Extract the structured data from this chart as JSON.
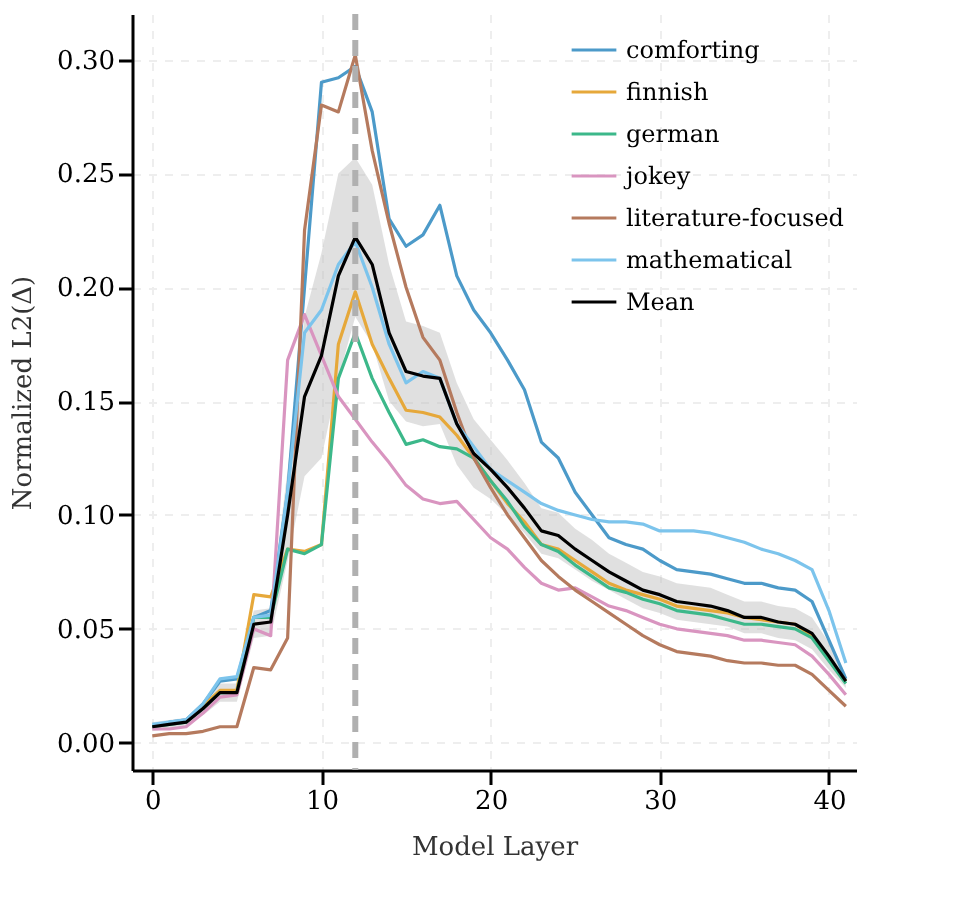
{
  "chart_data": {
    "type": "line",
    "xlabel": "Model Layer",
    "ylabel": "Normalized L2(Δ)",
    "x": [
      0,
      1,
      2,
      3,
      4,
      5,
      6,
      7,
      8,
      9,
      10,
      11,
      12,
      13,
      14,
      15,
      16,
      17,
      18,
      19,
      20,
      21,
      22,
      23,
      24,
      25,
      26,
      27,
      28,
      29,
      30,
      31,
      32,
      33,
      34,
      35,
      36,
      37,
      38,
      39,
      40,
      41
    ],
    "series": [
      {
        "name": "comforting",
        "color": "#4c9ac9",
        "values": [
          0.007,
          0.009,
          0.01,
          0.017,
          0.027,
          0.028,
          0.055,
          0.058,
          0.11,
          0.2,
          0.29,
          0.292,
          0.297,
          0.277,
          0.23,
          0.218,
          0.223,
          0.236,
          0.205,
          0.19,
          0.18,
          0.168,
          0.155,
          0.132,
          0.125,
          0.11,
          0.1,
          0.09,
          0.087,
          0.085,
          0.08,
          0.076,
          0.075,
          0.074,
          0.072,
          0.07,
          0.07,
          0.068,
          0.067,
          0.062,
          0.045,
          0.028
        ]
      },
      {
        "name": "finnish",
        "color": "#e6a83a",
        "values": [
          null,
          null,
          0.009,
          0.016,
          0.023,
          0.023,
          0.065,
          0.064,
          0.085,
          0.084,
          0.087,
          0.175,
          0.198,
          0.175,
          0.16,
          0.146,
          0.145,
          0.143,
          0.135,
          0.125,
          0.115,
          0.105,
          0.097,
          0.087,
          0.085,
          0.08,
          0.075,
          0.07,
          0.067,
          0.065,
          0.063,
          0.06,
          0.059,
          0.058,
          0.057,
          0.055,
          0.054,
          0.053,
          0.052,
          0.047,
          0.037,
          0.027
        ]
      },
      {
        "name": "german",
        "color": "#3cb88a",
        "values": [
          0.007,
          0.008,
          0.009,
          0.015,
          0.022,
          0.022,
          0.055,
          0.055,
          0.085,
          0.083,
          0.087,
          0.16,
          0.18,
          0.16,
          0.145,
          0.131,
          0.133,
          0.13,
          0.129,
          0.125,
          0.115,
          0.106,
          0.095,
          0.087,
          0.084,
          0.078,
          0.073,
          0.068,
          0.066,
          0.063,
          0.061,
          0.058,
          0.057,
          0.056,
          0.054,
          0.052,
          0.052,
          0.051,
          0.05,
          0.046,
          0.036,
          0.026
        ]
      },
      {
        "name": "jokey",
        "color": "#d995c0",
        "values": [
          0.006,
          0.006,
          0.007,
          0.013,
          0.02,
          0.021,
          0.05,
          0.047,
          0.168,
          0.188,
          0.17,
          0.152,
          0.142,
          0.132,
          0.123,
          0.113,
          0.107,
          0.105,
          0.106,
          0.098,
          0.09,
          0.085,
          0.077,
          0.07,
          0.067,
          0.068,
          0.064,
          0.06,
          0.058,
          0.055,
          0.052,
          0.05,
          0.049,
          0.048,
          0.047,
          0.045,
          0.045,
          0.044,
          0.043,
          0.038,
          0.03,
          0.021
        ]
      },
      {
        "name": "literature-focused",
        "color": "#b57a5e",
        "values": [
          0.003,
          0.004,
          0.004,
          0.005,
          0.007,
          0.007,
          0.033,
          0.032,
          0.046,
          0.225,
          0.28,
          0.277,
          0.302,
          0.26,
          0.228,
          0.2,
          0.178,
          0.168,
          0.145,
          0.125,
          0.112,
          0.1,
          0.09,
          0.08,
          0.073,
          0.067,
          0.062,
          0.057,
          0.052,
          0.047,
          0.043,
          0.04,
          0.039,
          0.038,
          0.036,
          0.035,
          0.035,
          0.034,
          0.034,
          0.03,
          0.023,
          0.016
        ]
      },
      {
        "name": "mathematical",
        "color": "#7cc4ec",
        "values": [
          0.008,
          0.009,
          0.01,
          0.017,
          0.028,
          0.029,
          0.055,
          0.056,
          0.11,
          0.18,
          0.19,
          0.21,
          0.22,
          0.2,
          0.175,
          0.158,
          0.163,
          0.16,
          0.14,
          0.13,
          0.12,
          0.115,
          0.11,
          0.105,
          0.102,
          0.1,
          0.098,
          0.097,
          0.097,
          0.096,
          0.093,
          0.093,
          0.093,
          0.092,
          0.09,
          0.088,
          0.085,
          0.083,
          0.08,
          0.076,
          0.058,
          0.035
        ]
      },
      {
        "name": "Mean",
        "color": "#000000",
        "values": [
          0.007,
          0.008,
          0.009,
          0.015,
          0.022,
          0.022,
          0.052,
          0.053,
          0.1,
          0.152,
          0.17,
          0.205,
          0.222,
          0.21,
          0.18,
          0.163,
          0.161,
          0.16,
          0.14,
          0.127,
          0.12,
          0.112,
          0.103,
          0.093,
          0.091,
          0.085,
          0.08,
          0.075,
          0.071,
          0.067,
          0.065,
          0.062,
          0.061,
          0.06,
          0.058,
          0.055,
          0.055,
          0.053,
          0.052,
          0.048,
          0.038,
          0.027
        ],
        "lower": [
          0.005,
          0.006,
          0.007,
          0.012,
          0.018,
          0.018,
          0.046,
          0.047,
          0.08,
          0.117,
          0.125,
          0.16,
          0.187,
          0.175,
          0.15,
          0.141,
          0.139,
          0.14,
          0.122,
          0.112,
          0.107,
          0.1,
          0.092,
          0.083,
          0.081,
          0.076,
          0.071,
          0.067,
          0.063,
          0.059,
          0.057,
          0.054,
          0.053,
          0.052,
          0.051,
          0.048,
          0.048,
          0.046,
          0.045,
          0.041,
          0.032,
          0.024
        ],
        "upper": [
          0.009,
          0.01,
          0.011,
          0.018,
          0.026,
          0.026,
          0.058,
          0.059,
          0.12,
          0.187,
          0.215,
          0.25,
          0.257,
          0.245,
          0.21,
          0.185,
          0.183,
          0.18,
          0.158,
          0.142,
          0.133,
          0.124,
          0.114,
          0.103,
          0.101,
          0.094,
          0.089,
          0.083,
          0.079,
          0.075,
          0.073,
          0.07,
          0.069,
          0.068,
          0.065,
          0.062,
          0.062,
          0.06,
          0.059,
          0.055,
          0.044,
          0.03
        ]
      }
    ],
    "ref_lines": [
      {
        "axis": "x",
        "value": 12,
        "color": "#b0b0b0",
        "line_style": "dashed"
      }
    ],
    "xlim": [
      -1.2,
      41.6
    ],
    "xticks": [
      0,
      10,
      20,
      30,
      40
    ],
    "ylim": [
      -0.012,
      0.32
    ],
    "yticks": [
      {
        "value": 0,
        "label": "0.00"
      },
      {
        "value": 0.05,
        "label": "0.05"
      },
      {
        "value": 0.1,
        "label": "0.10"
      },
      {
        "value": 0.15,
        "label": "0.15"
      },
      {
        "value": 0.2,
        "label": "0.20"
      },
      {
        "value": 0.25,
        "label": "0.25"
      },
      {
        "value": 0.3,
        "label": "0.30"
      }
    ],
    "grid": true,
    "legend": "top right",
    "marker": "none",
    "line_style": "solid"
  }
}
